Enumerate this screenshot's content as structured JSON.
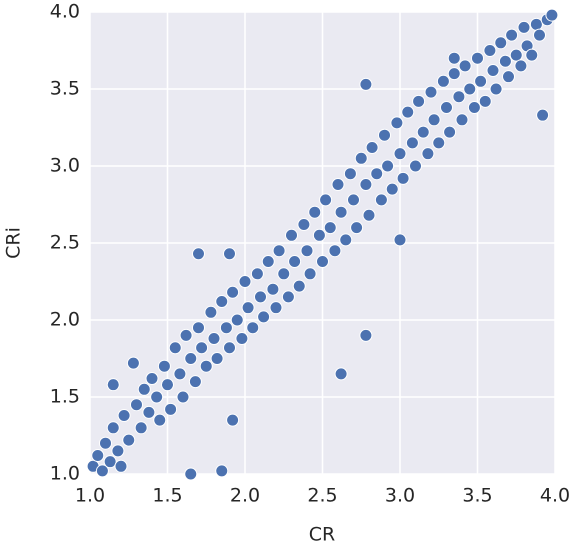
{
  "chart_data": {
    "type": "scatter",
    "xlabel": "CR",
    "ylabel": "CRi",
    "color": "#4c72b0",
    "grid": true,
    "xlim": [
      1.0,
      4.0
    ],
    "ylim": [
      1.0,
      4.0
    ],
    "xticks": [
      {
        "value": 1.0,
        "label": "1.0"
      },
      1.5,
      {
        "value": 2.0,
        "label": "2.0"
      },
      2.5,
      {
        "value": 3.0,
        "label": "3.0"
      },
      3.5,
      {
        "value": 4.0,
        "label": "4.0"
      }
    ],
    "yticks": [
      {
        "value": 1.0,
        "label": "1.0"
      },
      1.5,
      {
        "value": 2.0,
        "label": "2.0"
      },
      2.5,
      {
        "value": 3.0,
        "label": "3.0"
      },
      3.5,
      {
        "value": 4.0,
        "label": "4.0"
      }
    ],
    "x": [
      1.02,
      1.05,
      1.08,
      1.1,
      1.13,
      1.15,
      1.18,
      1.2,
      1.22,
      1.25,
      1.28,
      1.3,
      1.33,
      1.35,
      1.38,
      1.4,
      1.43,
      1.45,
      1.48,
      1.5,
      1.52,
      1.55,
      1.58,
      1.6,
      1.62,
      1.65,
      1.68,
      1.7,
      1.72,
      1.75,
      1.78,
      1.8,
      1.82,
      1.85,
      1.88,
      1.9,
      1.92,
      1.95,
      1.98,
      2.0,
      2.02,
      2.05,
      2.08,
      2.1,
      2.12,
      2.15,
      2.18,
      2.2,
      2.22,
      2.25,
      2.28,
      2.3,
      2.32,
      2.35,
      2.38,
      2.4,
      2.42,
      2.45,
      2.48,
      2.5,
      2.52,
      2.55,
      2.58,
      2.6,
      2.62,
      2.65,
      2.68,
      2.7,
      2.72,
      2.75,
      2.78,
      2.8,
      2.82,
      2.85,
      2.88,
      2.9,
      2.92,
      2.95,
      2.98,
      3.0,
      3.02,
      3.05,
      3.08,
      3.1,
      3.12,
      3.15,
      3.18,
      3.2,
      3.22,
      3.25,
      3.28,
      3.3,
      3.32,
      3.35,
      3.38,
      3.4,
      3.42,
      3.45,
      3.48,
      3.5,
      3.52,
      3.55,
      3.58,
      3.6,
      3.62,
      3.65,
      3.68,
      3.7,
      3.72,
      3.75,
      3.78,
      3.8,
      3.82,
      3.85,
      3.88,
      3.9,
      3.95,
      3.98,
      1.7,
      1.9,
      2.78,
      2.62,
      2.78,
      3.92,
      1.92,
      1.65,
      1.85,
      3.35,
      3.0,
      1.15
    ],
    "y": [
      1.05,
      1.12,
      1.02,
      1.2,
      1.08,
      1.3,
      1.15,
      1.05,
      1.38,
      1.22,
      1.72,
      1.45,
      1.3,
      1.55,
      1.4,
      1.62,
      1.5,
      1.35,
      1.7,
      1.58,
      1.42,
      1.82,
      1.65,
      1.5,
      1.9,
      1.75,
      1.6,
      1.95,
      1.82,
      1.7,
      2.05,
      1.88,
      1.75,
      2.12,
      1.95,
      1.82,
      2.18,
      2.0,
      1.88,
      2.25,
      2.08,
      1.95,
      2.3,
      2.15,
      2.02,
      2.38,
      2.2,
      2.08,
      2.45,
      2.3,
      2.15,
      2.55,
      2.38,
      2.22,
      2.62,
      2.45,
      2.3,
      2.7,
      2.55,
      2.38,
      2.78,
      2.6,
      2.45,
      2.88,
      2.7,
      2.52,
      2.95,
      2.78,
      2.6,
      3.05,
      2.88,
      2.68,
      3.12,
      2.95,
      2.78,
      3.2,
      3.0,
      2.85,
      3.28,
      3.08,
      2.92,
      3.35,
      3.15,
      3.0,
      3.42,
      3.22,
      3.08,
      3.48,
      3.3,
      3.15,
      3.55,
      3.38,
      3.22,
      3.6,
      3.45,
      3.3,
      3.65,
      3.5,
      3.38,
      3.7,
      3.55,
      3.42,
      3.75,
      3.62,
      3.5,
      3.8,
      3.68,
      3.58,
      3.85,
      3.72,
      3.65,
      3.9,
      3.78,
      3.72,
      3.92,
      3.85,
      3.95,
      3.98,
      2.43,
      2.43,
      3.53,
      1.65,
      1.9,
      3.33,
      1.35,
      1.0,
      1.02,
      3.7,
      2.52,
      1.58
    ]
  }
}
